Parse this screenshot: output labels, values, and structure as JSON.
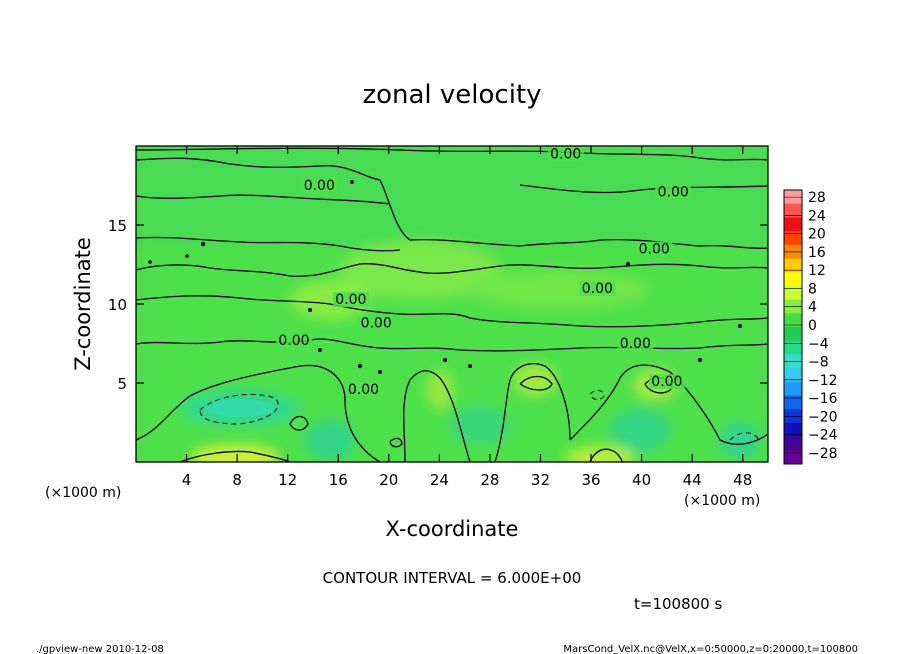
{
  "chart_data": {
    "type": "heatmap",
    "title": "zonal velocity",
    "xlabel": "X-coordinate",
    "ylabel": "Z-coordinate",
    "x_unit": "(×1000 m)",
    "y_unit": "(×1000 m)",
    "xlim": [
      0,
      50
    ],
    "ylim": [
      0,
      20
    ],
    "x_ticks": [
      "4",
      "8",
      "12",
      "16",
      "20",
      "24",
      "28",
      "32",
      "36",
      "40",
      "44",
      "48"
    ],
    "x_tick_values": [
      4,
      8,
      12,
      16,
      20,
      24,
      28,
      32,
      36,
      40,
      44,
      48
    ],
    "y_ticks": [
      "5",
      "10",
      "15"
    ],
    "y_tick_values": [
      5,
      10,
      15
    ],
    "colorbar": {
      "labels": [
        "28",
        "24",
        "20",
        "16",
        "12",
        "8",
        "4",
        "0",
        "−4",
        "−8",
        "−12",
        "−16",
        "−20",
        "−24",
        "−28"
      ],
      "colors": [
        "#ff9a9a",
        "#ff5555",
        "#ee1111",
        "#ff4400",
        "#ff8800",
        "#ffcc00",
        "#ffff00",
        "#ccff33",
        "#88ee44",
        "#44dd44",
        "#22cc55",
        "#22dd88",
        "#33ddcc",
        "#33ccee",
        "#2299ff",
        "#1166ee",
        "#1133dd",
        "#1111bb",
        "#440099",
        "#660099"
      ]
    },
    "contour_labels": [
      {
        "text": "0.00",
        "x": 14.5,
        "z": 17.2
      },
      {
        "text": "0.00",
        "x": 34.0,
        "z": 19.2
      },
      {
        "text": "0.00",
        "x": 42.5,
        "z": 16.8
      },
      {
        "text": "0.00",
        "x": 41.0,
        "z": 13.2
      },
      {
        "text": "0.00",
        "x": 36.5,
        "z": 10.7
      },
      {
        "text": "0.00",
        "x": 17.0,
        "z": 10.0
      },
      {
        "text": "0.00",
        "x": 19.0,
        "z": 8.5
      },
      {
        "text": "0.00",
        "x": 12.5,
        "z": 7.4
      },
      {
        "text": "0.00",
        "x": 39.5,
        "z": 7.2
      },
      {
        "text": "0.00",
        "x": 18.0,
        "z": 4.3
      },
      {
        "text": "0.00",
        "x": 42.0,
        "z": 4.8
      }
    ]
  },
  "annotations": {
    "contour_interval": "CONTOUR INTERVAL = 6.000E+00",
    "time": "t=100800  s"
  },
  "footer": {
    "left": "./gpview-new   2010-12-08",
    "right": "MarsCond_VelX.nc@VelX,x=0:50000,z=0:20000,t=100800"
  }
}
